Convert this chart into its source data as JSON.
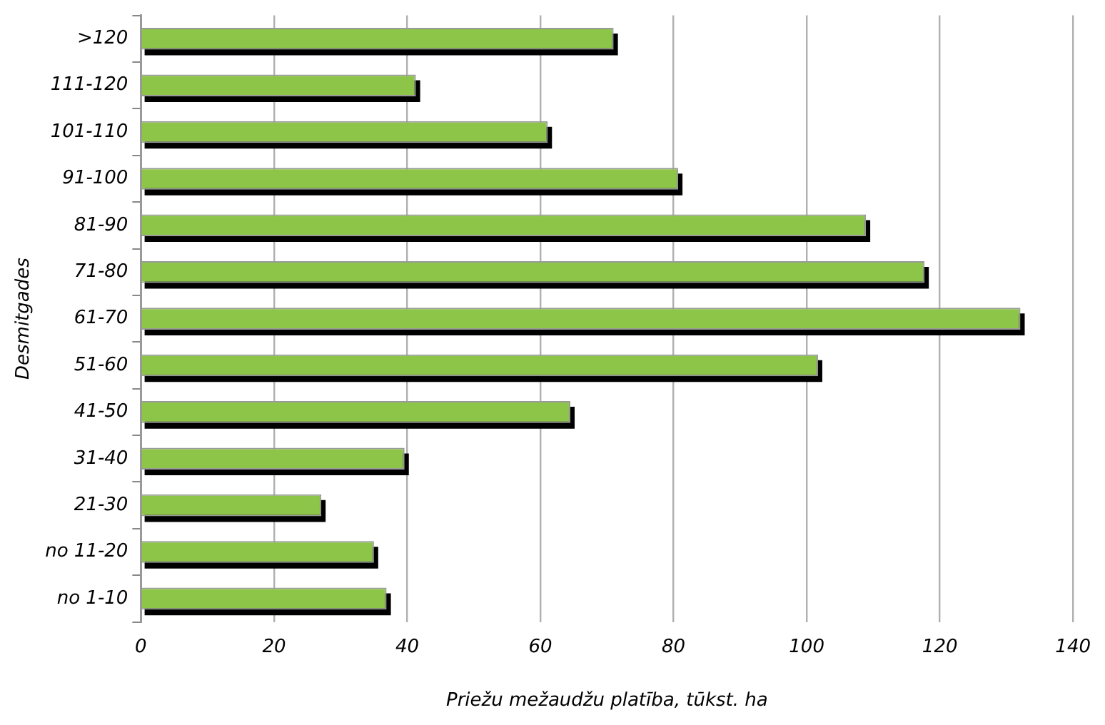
{
  "chart_data": {
    "type": "bar",
    "orientation": "horizontal",
    "xlabel": "Priežu mežaudžu platība, tūkst. ha",
    "ylabel": "Desmitgades",
    "categories": [
      ">120",
      "111-120",
      "101-110",
      "91-100",
      "81-90",
      "71-80",
      "61-70",
      "51-60",
      "41-50",
      "31-40",
      "21-30",
      "no 11-20",
      "no 1-10"
    ],
    "values": [
      71,
      41.3,
      61.1,
      80.7,
      108.9,
      117.7,
      132.1,
      101.7,
      64.5,
      39.6,
      27.1,
      35,
      36.9
    ],
    "color": "#8dc548",
    "xlim": [
      0,
      140
    ],
    "xticks": [
      0,
      20,
      40,
      60,
      80,
      100,
      120,
      140
    ],
    "grid": "x",
    "legend": false
  }
}
